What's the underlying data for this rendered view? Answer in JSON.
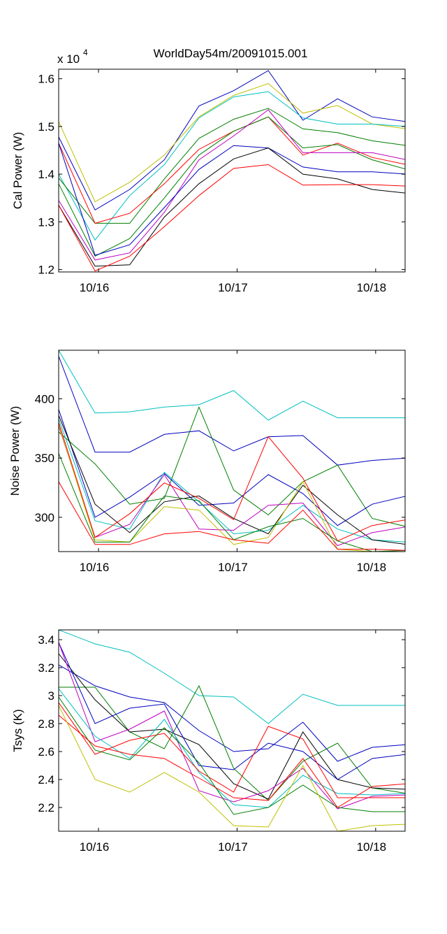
{
  "title": "WorldDay54m/20091015.001",
  "chart_data": [
    {
      "type": "line",
      "ylabel": "Cal Power (W)",
      "exponent_label": "x 10",
      "exponent_power": "4",
      "xlim": [
        0,
        12
      ],
      "ylim": [
        1.195,
        1.62
      ],
      "x": [
        0,
        1,
        2,
        3,
        4,
        5,
        6,
        7,
        8,
        9
      ],
      "xticks": [
        {
          "label": "10/16",
          "x": 1.15
        },
        {
          "label": "10/17",
          "x": 5.15
        },
        {
          "label": "10/18",
          "x": 9.15
        }
      ],
      "yticks": [
        {
          "label": "1.2",
          "value": 1.2
        },
        {
          "label": "1.3",
          "value": 1.3
        },
        {
          "label": "1.4",
          "value": 1.4
        },
        {
          "label": "1.5",
          "value": 1.5
        },
        {
          "label": "1.6",
          "value": 1.6
        }
      ],
      "series": [
        {
          "color": "#0000bf",
          "x": [
            0,
            1.05,
            2.05,
            3.05,
            4.05,
            5.05,
            6.05,
            7.05,
            8.05,
            9.05,
            10.05
          ],
          "values": [
            1.478,
            1.325,
            1.368,
            1.43,
            1.543,
            1.575,
            1.617,
            1.513,
            1.558,
            1.52,
            1.51
          ]
        },
        {
          "color": "#bfbf00",
          "x": [
            0,
            1.05,
            2.05,
            3.05,
            4.05,
            5.05,
            6.05,
            7.05,
            8.05,
            9.05,
            10.05
          ],
          "values": [
            1.51,
            1.342,
            1.383,
            1.44,
            1.52,
            1.565,
            1.59,
            1.528,
            1.544,
            1.505,
            1.495
          ]
        },
        {
          "color": "#00bfbf",
          "x": [
            0,
            1.05,
            2.05,
            3.05,
            4.05,
            5.05,
            6.05,
            7.05,
            8.05,
            9.05,
            10.05
          ],
          "values": [
            1.4,
            1.262,
            1.355,
            1.42,
            1.518,
            1.562,
            1.573,
            1.518,
            1.505,
            1.505,
            1.5
          ]
        },
        {
          "color": "#007f00",
          "x": [
            0,
            1.05,
            2.05,
            3.05,
            4.05,
            5.05,
            6.05,
            7.05,
            8.05,
            9.05,
            10.05
          ],
          "values": [
            1.392,
            1.297,
            1.297,
            1.39,
            1.475,
            1.515,
            1.538,
            1.495,
            1.487,
            1.47,
            1.46
          ]
        },
        {
          "color": "#ff0000",
          "x": [
            0,
            1.05,
            2.05,
            3.05,
            4.05,
            5.05,
            6.05,
            7.05,
            8.05,
            9.05,
            10.05
          ],
          "values": [
            1.465,
            1.297,
            1.318,
            1.38,
            1.452,
            1.49,
            1.52,
            1.44,
            1.465,
            1.435,
            1.42
          ]
        },
        {
          "color": "#007f00",
          "x": [
            0,
            1.05,
            2.05,
            3.05,
            4.05,
            5.05,
            6.05,
            7.05,
            8.05,
            9.05,
            10.05
          ],
          "values": [
            1.38,
            1.228,
            1.265,
            1.35,
            1.44,
            1.49,
            1.52,
            1.455,
            1.462,
            1.43,
            1.41
          ]
        },
        {
          "color": "#bf00bf",
          "x": [
            0,
            1.05,
            2.05,
            3.05,
            4.05,
            5.05,
            6.05,
            7.05,
            8.05,
            9.05,
            10.05
          ],
          "values": [
            1.345,
            1.22,
            1.235,
            1.32,
            1.43,
            1.48,
            1.535,
            1.445,
            1.445,
            1.445,
            1.43
          ]
        },
        {
          "color": "#0000bf",
          "x": [
            0,
            1.05,
            2.05,
            3.05,
            4.05,
            5.05,
            6.05,
            7.05,
            8.05,
            9.05,
            10.05
          ],
          "values": [
            1.465,
            1.23,
            1.252,
            1.33,
            1.41,
            1.46,
            1.455,
            1.415,
            1.405,
            1.405,
            1.4
          ]
        },
        {
          "color": "#000000",
          "x": [
            0,
            1.05,
            2.05,
            3.05,
            4.05,
            5.05,
            6.05,
            7.05,
            8.05,
            9.05,
            10.05
          ],
          "values": [
            1.335,
            1.207,
            1.21,
            1.31,
            1.38,
            1.432,
            1.455,
            1.4,
            1.39,
            1.368,
            1.36
          ]
        },
        {
          "color": "#ff0000",
          "x": [
            0,
            1.05,
            2.05,
            3.05,
            4.05,
            5.05,
            6.05,
            7.05,
            8.05,
            9.05,
            10.05
          ],
          "values": [
            1.335,
            1.197,
            1.228,
            1.29,
            1.355,
            1.412,
            1.42,
            1.377,
            1.378,
            1.378,
            1.375
          ]
        }
      ]
    },
    {
      "type": "line",
      "ylabel": "Noise Power (W)",
      "xlim": [
        0,
        12
      ],
      "ylim": [
        271,
        441
      ],
      "xticks": [
        {
          "label": "10/16",
          "x": 1.15
        },
        {
          "label": "10/17",
          "x": 5.15
        },
        {
          "label": "10/18",
          "x": 9.15
        }
      ],
      "yticks": [
        {
          "label": "300",
          "value": 300
        },
        {
          "label": "350",
          "value": 350
        },
        {
          "label": "400",
          "value": 400
        }
      ],
      "series": [
        {
          "color": "#00bfbf",
          "x": [
            0,
            1.05,
            2.05,
            3.05,
            4.05,
            5.05,
            6.05,
            7.05,
            8.05,
            9.05,
            10.05
          ],
          "values": [
            441,
            388,
            389,
            393,
            395,
            407,
            382,
            398,
            384,
            384,
            384
          ]
        },
        {
          "color": "#0000bf",
          "x": [
            0,
            1.05,
            2.05,
            3.05,
            4.05,
            5.05,
            6.05,
            7.05,
            8.05,
            9.05,
            10.05
          ],
          "values": [
            436,
            355,
            355,
            370,
            373,
            356,
            368,
            369,
            344,
            348,
            350
          ]
        },
        {
          "color": "#007f00",
          "x": [
            0,
            1.05,
            2.05,
            3.05,
            4.05,
            5.05,
            6.05,
            7.05,
            8.05,
            9.05,
            10.05
          ],
          "values": [
            372,
            345,
            311,
            316,
            393,
            323,
            302,
            330,
            344,
            299,
            292
          ]
        },
        {
          "color": "#0000bf",
          "x": [
            0,
            1.05,
            2.05,
            3.05,
            4.05,
            5.05,
            6.05,
            7.05,
            8.05,
            9.05,
            10.05
          ],
          "values": [
            391,
            300,
            317,
            337,
            310,
            312,
            336,
            320,
            293,
            311,
            318
          ]
        },
        {
          "color": "#00bfbf",
          "x": [
            0,
            1.05,
            2.05,
            3.05,
            4.05,
            5.05,
            6.05,
            7.05,
            8.05,
            9.05,
            10.05
          ],
          "values": [
            383,
            297,
            290,
            338,
            313,
            286,
            289,
            310,
            290,
            281,
            279
          ]
        },
        {
          "color": "#000000",
          "x": [
            0,
            1.05,
            2.05,
            3.05,
            4.05,
            5.05,
            6.05,
            7.05,
            8.05,
            9.05,
            10.05
          ],
          "values": [
            386,
            311,
            287,
            313,
            318,
            299,
            286,
            327,
            302,
            281,
            277
          ]
        },
        {
          "color": "#bf00bf",
          "x": [
            0,
            1.05,
            2.05,
            3.05,
            4.05,
            5.05,
            6.05,
            7.05,
            8.05,
            9.05,
            10.05
          ],
          "values": [
            377,
            283,
            294,
            336,
            290,
            289,
            310,
            312,
            276,
            287,
            292
          ]
        },
        {
          "color": "#ff0000",
          "x": [
            0,
            1.05,
            2.05,
            3.05,
            4.05,
            5.05,
            6.05,
            7.05,
            8.05,
            9.05,
            10.05
          ],
          "values": [
            380,
            283,
            303,
            329,
            316,
            298,
            368,
            333,
            280,
            293,
            298
          ]
        },
        {
          "color": "#bfbf00",
          "x": [
            0,
            1.05,
            2.05,
            3.05,
            4.05,
            5.05,
            6.05,
            7.05,
            8.05,
            9.05,
            10.05
          ],
          "values": [
            378,
            281,
            279,
            309,
            306,
            277,
            283,
            330,
            273,
            271,
            271
          ]
        },
        {
          "color": "#007f00",
          "x": [
            0,
            1.05,
            2.05,
            3.05,
            4.05,
            5.05,
            6.05,
            7.05,
            8.05,
            9.05,
            10.05
          ],
          "values": [
            354,
            279,
            279,
            318,
            314,
            281,
            292,
            299,
            280,
            271,
            272
          ]
        },
        {
          "color": "#ff0000",
          "x": [
            0,
            1.05,
            2.05,
            3.05,
            4.05,
            5.05,
            6.05,
            7.05,
            8.05,
            9.05,
            10.05
          ],
          "values": [
            330,
            277,
            277,
            286,
            288,
            281,
            278,
            306,
            273,
            273,
            272
          ]
        }
      ]
    },
    {
      "type": "line",
      "ylabel": "Tsys (K)",
      "xlim": [
        0,
        12
      ],
      "ylim": [
        2.03,
        3.47
      ],
      "xticks": [
        {
          "label": "10/16",
          "x": 1.15
        },
        {
          "label": "10/17",
          "x": 5.15
        },
        {
          "label": "10/18",
          "x": 9.15
        }
      ],
      "yticks": [
        {
          "label": "2.2",
          "value": 2.2
        },
        {
          "label": "2.4",
          "value": 2.4
        },
        {
          "label": "2.6",
          "value": 2.6
        },
        {
          "label": "2.8",
          "value": 2.8
        },
        {
          "label": "3",
          "value": 3.0
        },
        {
          "label": "3.2",
          "value": 3.2
        },
        {
          "label": "3.4",
          "value": 3.4
        }
      ],
      "series": [
        {
          "color": "#00bfbf",
          "x": [
            0,
            1.05,
            2.05,
            3.05,
            4.05,
            5.05,
            6.05,
            7.05,
            8.05,
            9.05,
            10.05
          ],
          "values": [
            3.47,
            3.37,
            3.31,
            3.16,
            3.0,
            2.99,
            2.8,
            3.01,
            2.93,
            2.93,
            2.93
          ]
        },
        {
          "color": "#0000bf",
          "x": [
            0,
            1.05,
            2.05,
            3.05,
            4.05,
            5.05,
            6.05,
            7.05,
            8.05,
            9.05,
            10.05
          ],
          "values": [
            3.22,
            3.07,
            2.99,
            2.95,
            2.75,
            2.6,
            2.62,
            2.81,
            2.53,
            2.63,
            2.65
          ]
        },
        {
          "color": "#007f00",
          "x": [
            0,
            1.05,
            2.05,
            3.05,
            4.05,
            5.05,
            6.05,
            7.05,
            8.05,
            9.05,
            10.05
          ],
          "values": [
            3.06,
            3.06,
            2.74,
            2.62,
            3.07,
            2.48,
            2.25,
            2.53,
            2.66,
            2.34,
            2.3
          ]
        },
        {
          "color": "#000000",
          "x": [
            0,
            1.05,
            2.05,
            3.05,
            4.05,
            5.05,
            6.05,
            7.05,
            8.05,
            9.05,
            10.05
          ],
          "values": [
            3.3,
            2.97,
            2.74,
            2.76,
            2.65,
            2.37,
            2.26,
            2.74,
            2.4,
            2.34,
            2.33
          ]
        },
        {
          "color": "#0000bf",
          "x": [
            0,
            1.05,
            2.05,
            3.05,
            4.05,
            5.05,
            6.05,
            7.05,
            8.05,
            9.05,
            10.05
          ],
          "values": [
            3.38,
            2.8,
            2.91,
            2.94,
            2.5,
            2.47,
            2.66,
            2.6,
            2.4,
            2.55,
            2.58
          ]
        },
        {
          "color": "#bf00bf",
          "x": [
            0,
            1.05,
            2.05,
            3.05,
            4.05,
            5.05,
            6.05,
            7.05,
            8.05,
            9.05,
            10.05
          ],
          "values": [
            3.38,
            2.67,
            2.76,
            2.89,
            2.32,
            2.24,
            2.32,
            2.48,
            2.19,
            2.28,
            2.29
          ]
        },
        {
          "color": "#00bfbf",
          "x": [
            0,
            1.05,
            2.05,
            3.05,
            4.05,
            5.05,
            6.05,
            7.05,
            8.05,
            9.05,
            10.05
          ],
          "values": [
            3.05,
            2.71,
            2.55,
            2.83,
            2.45,
            2.22,
            2.2,
            2.43,
            2.3,
            2.29,
            2.3
          ]
        },
        {
          "color": "#ff0000",
          "x": [
            0,
            1.05,
            2.05,
            3.05,
            4.05,
            5.05,
            6.05,
            7.05,
            8.05,
            9.05,
            10.05
          ],
          "values": [
            2.95,
            2.58,
            2.68,
            2.73,
            2.46,
            2.31,
            2.78,
            2.69,
            2.27,
            2.27,
            2.27
          ]
        },
        {
          "color": "#007f00",
          "x": [
            0,
            1.05,
            2.05,
            3.05,
            4.05,
            5.05,
            6.05,
            7.05,
            8.05,
            9.05,
            10.05
          ],
          "values": [
            2.99,
            2.61,
            2.54,
            2.77,
            2.52,
            2.15,
            2.2,
            2.36,
            2.2,
            2.17,
            2.17
          ]
        },
        {
          "color": "#ff0000",
          "x": [
            0,
            1.05,
            2.05,
            3.05,
            4.05,
            5.05,
            6.05,
            7.05,
            8.05,
            9.05,
            10.05
          ],
          "values": [
            2.86,
            2.64,
            2.58,
            2.55,
            2.41,
            2.27,
            2.25,
            2.55,
            2.2,
            2.35,
            2.37
          ]
        },
        {
          "color": "#bfbf00",
          "x": [
            0,
            1.05,
            2.05,
            3.05,
            4.05,
            5.05,
            6.05,
            7.05,
            8.05,
            9.05,
            10.05
          ],
          "values": [
            2.93,
            2.4,
            2.31,
            2.45,
            2.31,
            2.07,
            2.06,
            2.5,
            2.03,
            2.07,
            2.08
          ]
        }
      ]
    }
  ]
}
